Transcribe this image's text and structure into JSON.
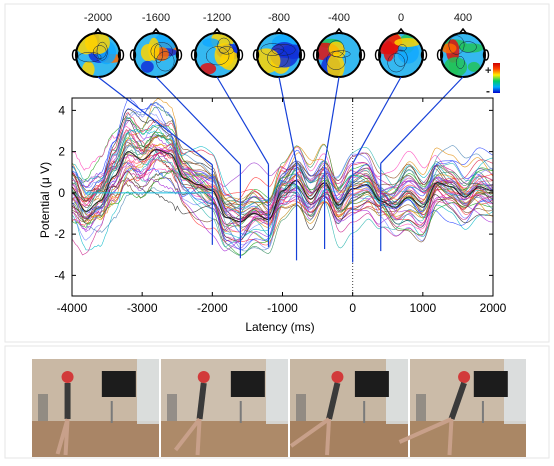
{
  "chart_data": {
    "type": "line",
    "xlabel": "Latency (ms)",
    "ylabel": "Potential (μ V)",
    "xlim": [
      -4000,
      2000
    ],
    "ylim": [
      -5,
      4.6
    ],
    "x_ticks": [
      -4000,
      -3000,
      -2000,
      -1000,
      0,
      1000,
      2000
    ],
    "y_ticks": [
      4,
      2,
      0,
      -2,
      -4
    ],
    "grid": false,
    "zero_line_x": 0,
    "channel_count": 48,
    "mean_trace": {
      "x": [
        -4000,
        -3800,
        -3600,
        -3400,
        -3200,
        -3000,
        -2800,
        -2600,
        -2400,
        -2200,
        -2000,
        -1800,
        -1600,
        -1400,
        -1200,
        -1000,
        -800,
        -600,
        -400,
        -200,
        0,
        200,
        400,
        600,
        800,
        1000,
        1200,
        1400,
        1600,
        1800,
        2000
      ],
      "y": [
        0,
        -0.9,
        -0.4,
        0.8,
        2.0,
        1.6,
        2.1,
        1.9,
        0.7,
        0.4,
        0.1,
        -1.2,
        -1.4,
        -1.0,
        -1.3,
        0.1,
        0.6,
        -0.3,
        0.5,
        -0.6,
        0.2,
        0.4,
        -0.4,
        -0.7,
        -0.2,
        -0.7,
        0.5,
        0.3,
        -0.2,
        0.3,
        0.1
      ]
    },
    "topomap_latencies": [
      -2000,
      -1600,
      -1200,
      -800,
      -400,
      0,
      400
    ],
    "topomap_labels": [
      "-2000",
      "-1600",
      "-1200",
      "-800",
      "-400",
      "0",
      "400"
    ],
    "colorbar": {
      "plus": "+",
      "minus": "-",
      "colors": [
        "#cc0000",
        "#ff4400",
        "#ffee00",
        "#00cc66",
        "#00aaff",
        "#0000cc"
      ]
    }
  },
  "photos": {
    "frames": [
      {
        "wall": "#c9b8a4",
        "floor": "#a98566"
      },
      {
        "wall": "#cdbfae",
        "floor": "#ad8a69"
      },
      {
        "wall": "#c7b7a3",
        "floor": "#a68160"
      },
      {
        "wall": "#cbbba8",
        "floor": "#aa8765"
      }
    ]
  }
}
